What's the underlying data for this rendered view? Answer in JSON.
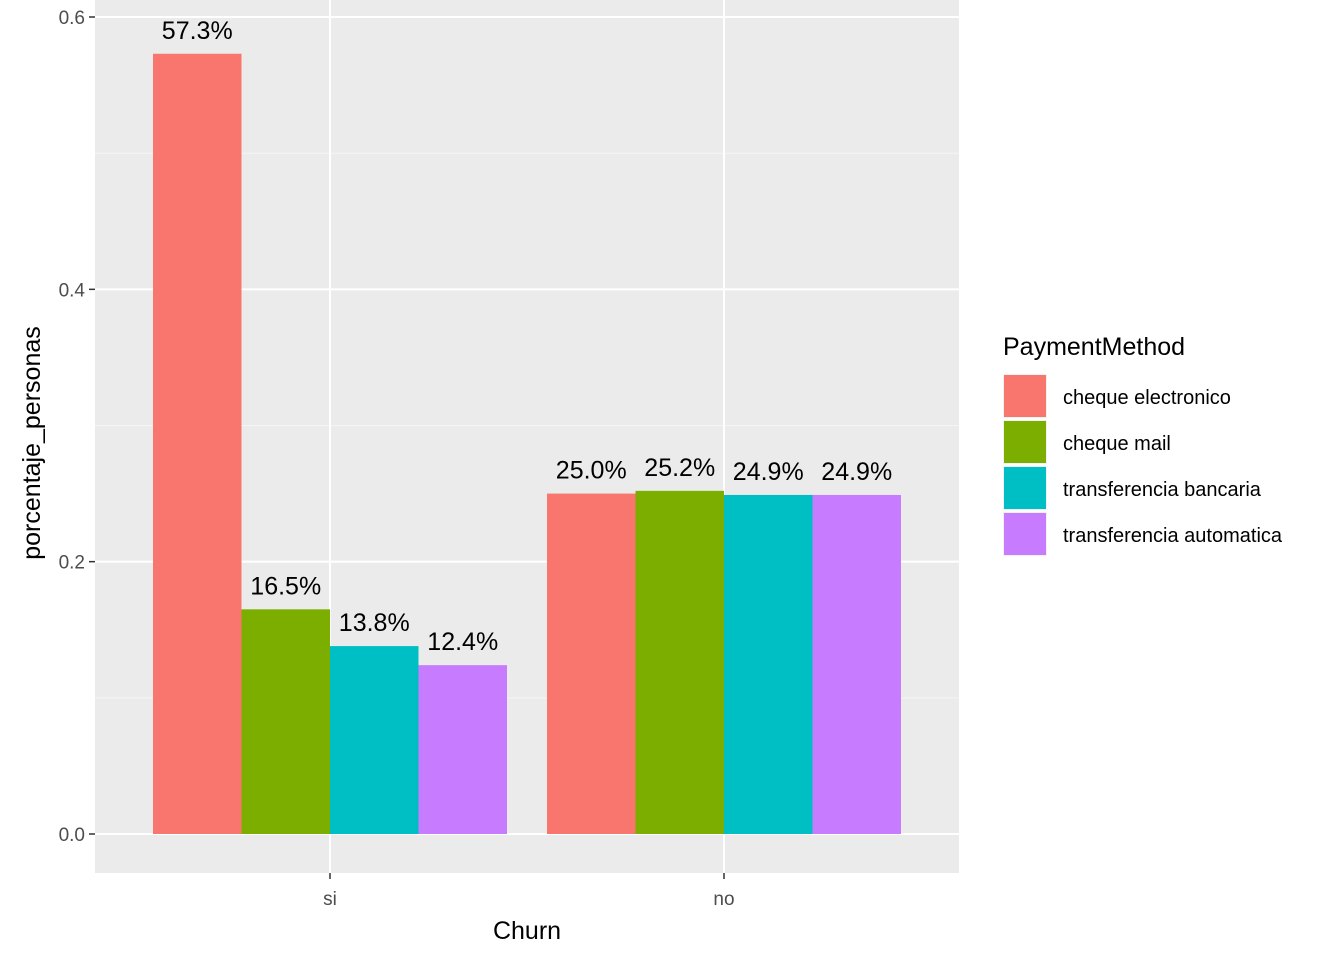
{
  "chart_data": {
    "type": "bar",
    "title": "",
    "xlabel": "Churn",
    "ylabel": "porcentaje_personas",
    "categories": [
      "si",
      "no"
    ],
    "ylim": [
      0,
      0.6
    ],
    "yticks": [
      0.0,
      0.2,
      0.4,
      0.6
    ],
    "ytick_labels": [
      "0.0",
      "0.2",
      "0.4",
      "0.6"
    ],
    "grid": true,
    "legend": {
      "title": "PaymentMethod",
      "placement": "right"
    },
    "series": [
      {
        "name": "cheque electronico",
        "color": "#F8766D",
        "values": [
          0.573,
          0.25
        ],
        "labels": [
          "57.3%",
          "25.0%"
        ]
      },
      {
        "name": "cheque mail",
        "color": "#7CAE00",
        "values": [
          0.165,
          0.252
        ],
        "labels": [
          "16.5%",
          "25.2%"
        ]
      },
      {
        "name": "transferencia bancaria",
        "color": "#00BFC4",
        "values": [
          0.138,
          0.249
        ],
        "labels": [
          "13.8%",
          "24.9%"
        ]
      },
      {
        "name": "transferencia automatica",
        "color": "#C77CFF",
        "values": [
          0.124,
          0.249
        ],
        "labels": [
          "12.4%",
          "24.9%"
        ]
      }
    ]
  }
}
